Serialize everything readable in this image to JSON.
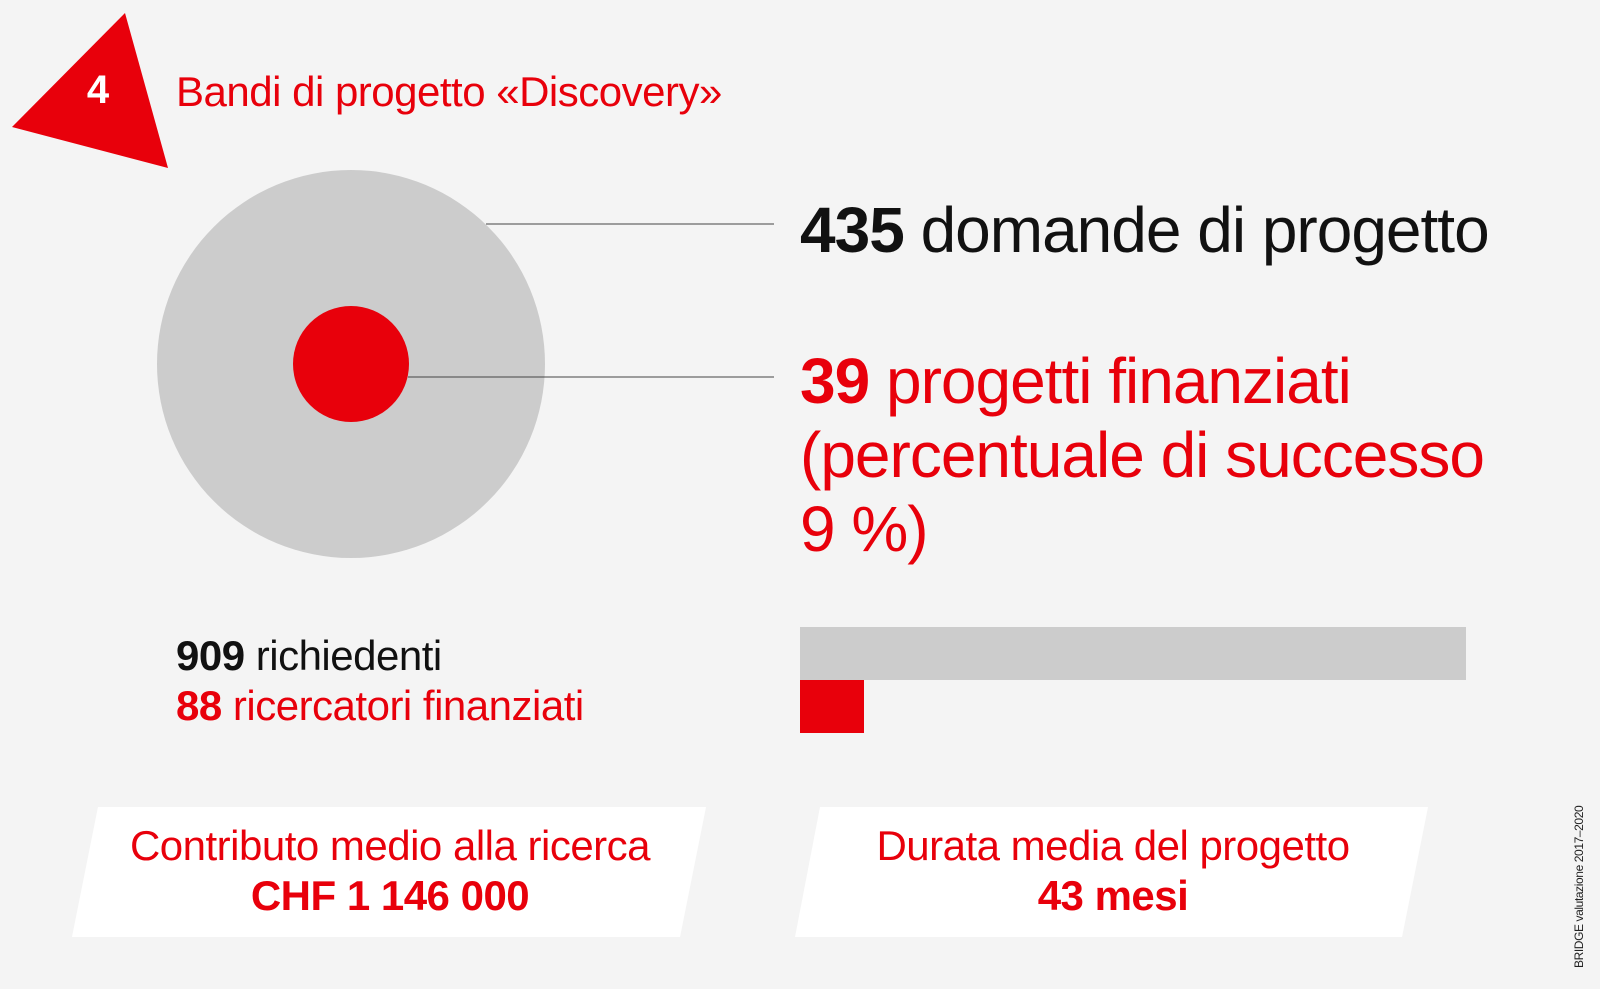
{
  "header": {
    "badge_number": "4",
    "title": "Bandi di progetto «Discovery»"
  },
  "applications": {
    "count": "435",
    "label": "domande di progetto"
  },
  "funded": {
    "count": "39",
    "label": "progetti finanziati",
    "success_label": "(percentuale di successo",
    "success_rate": "9 %)"
  },
  "people": {
    "applicants_count": "909",
    "applicants_label": "richiedenti",
    "researchers_count": "88",
    "researchers_label": "ricercatori finanziati"
  },
  "bars": {
    "total_value": 909,
    "funded_value": 88
  },
  "cards": [
    {
      "label": "Contributo medio alla ricerca",
      "value": "CHF 1 146 000"
    },
    {
      "label": "Durata media del progetto",
      "value": "43 mesi"
    }
  ],
  "credit": "BRIDGE valutazione 2017–2020",
  "colors": {
    "accent": "#e8000b",
    "grey": "#cccccc",
    "dark": "#111111",
    "background": "#f4f4f4"
  }
}
